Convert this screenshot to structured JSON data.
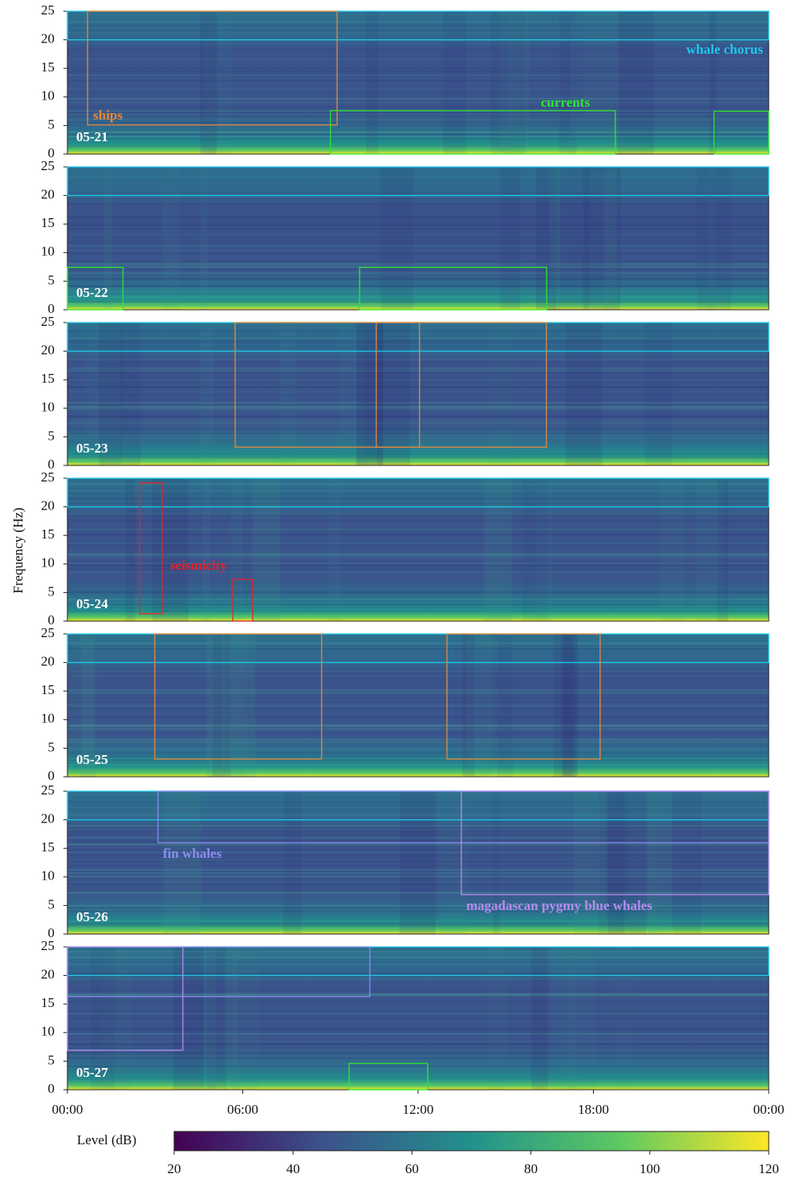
{
  "figure": {
    "ylabel": "Frequency (Hz)"
  },
  "chart_data": [
    {
      "type": "spectrogram",
      "date": "05-21",
      "xlim": [
        0,
        24
      ],
      "ylim": [
        0,
        25
      ],
      "yticks": [
        0,
        5,
        10,
        15,
        20,
        25
      ],
      "boxes": [
        {
          "x": [
            0,
            24
          ],
          "y": [
            20,
            25
          ],
          "color": "#1ec8e8"
        },
        {
          "x": [
            0.69,
            9.23
          ],
          "y": [
            5.1,
            25
          ],
          "color": "#e8873a"
        },
        {
          "x": [
            9.0,
            18.75
          ],
          "y": [
            0,
            7.6
          ],
          "color": "#2ee62e"
        },
        {
          "x": [
            22.13,
            24
          ],
          "y": [
            0,
            7.5
          ],
          "color": "#2ee62e"
        }
      ],
      "labels": [
        {
          "text": "whale chorus",
          "color": "#1ec8e8"
        },
        {
          "text": "ships",
          "color": "#e8873a"
        },
        {
          "text": "currents",
          "color": "#2ee62e"
        }
      ]
    },
    {
      "type": "spectrogram",
      "date": "05-22",
      "xlim": [
        0,
        24
      ],
      "ylim": [
        0,
        25
      ],
      "yticks": [
        0,
        5,
        10,
        15,
        20,
        25
      ],
      "boxes": [
        {
          "x": [
            0,
            24
          ],
          "y": [
            20,
            25
          ],
          "color": "#1ec8e8"
        },
        {
          "x": [
            0,
            1.9
          ],
          "y": [
            0,
            7.4
          ],
          "color": "#2ee62e"
        },
        {
          "x": [
            10.0,
            16.4
          ],
          "y": [
            0,
            7.4
          ],
          "color": "#2ee62e"
        }
      ],
      "labels": []
    },
    {
      "type": "spectrogram",
      "date": "05-23",
      "xlim": [
        0,
        24
      ],
      "ylim": [
        0,
        25
      ],
      "yticks": [
        0,
        5,
        10,
        15,
        20,
        25
      ],
      "boxes": [
        {
          "x": [
            0,
            24
          ],
          "y": [
            20,
            25
          ],
          "color": "#1ec8e8"
        },
        {
          "x": [
            5.74,
            12.05
          ],
          "y": [
            3.2,
            25
          ],
          "color": "#e8873a"
        },
        {
          "x": [
            10.57,
            16.39
          ],
          "y": [
            3.2,
            25
          ],
          "color": "#e8873a"
        }
      ],
      "labels": []
    },
    {
      "type": "spectrogram",
      "date": "05-24",
      "xlim": [
        0,
        24
      ],
      "ylim": [
        0,
        25
      ],
      "yticks": [
        0,
        5,
        10,
        15,
        20,
        25
      ],
      "boxes": [
        {
          "x": [
            0,
            24
          ],
          "y": [
            20,
            25
          ],
          "color": "#1ec8e8"
        },
        {
          "x": [
            2.47,
            3.24
          ],
          "y": [
            1.3,
            24.2
          ],
          "color": "#e8222a"
        },
        {
          "x": [
            5.66,
            6.34
          ],
          "y": [
            0,
            7.3
          ],
          "color": "#e8222a"
        }
      ],
      "labels": [
        {
          "text": "seismicity",
          "color": "#e8222a"
        }
      ]
    },
    {
      "type": "spectrogram",
      "date": "05-25",
      "xlim": [
        0,
        24
      ],
      "ylim": [
        0,
        25
      ],
      "yticks": [
        0,
        5,
        10,
        15,
        20,
        25
      ],
      "boxes": [
        {
          "x": [
            0,
            24
          ],
          "y": [
            20,
            25
          ],
          "color": "#1ec8e8"
        },
        {
          "x": [
            2.99,
            8.7
          ],
          "y": [
            3.1,
            25
          ],
          "color": "#e8873a"
        },
        {
          "x": [
            12.99,
            18.23
          ],
          "y": [
            3.1,
            25
          ],
          "color": "#e8873a"
        }
      ],
      "labels": []
    },
    {
      "type": "spectrogram",
      "date": "05-26",
      "xlim": [
        0,
        24
      ],
      "ylim": [
        0,
        25
      ],
      "yticks": [
        0,
        5,
        10,
        15,
        20,
        25
      ],
      "boxes": [
        {
          "x": [
            0,
            24
          ],
          "y": [
            20,
            25
          ],
          "color": "#1ec8e8"
        },
        {
          "x": [
            3.1,
            24
          ],
          "y": [
            16.0,
            25
          ],
          "color": "#8c8cf0"
        },
        {
          "x": [
            13.48,
            24
          ],
          "y": [
            6.9,
            25
          ],
          "color": "#b88af0"
        }
      ],
      "labels": [
        {
          "text": "fin whales",
          "color": "#8c8cf0"
        },
        {
          "text": "magadascan pygmy blue whales",
          "color": "#b88af0"
        }
      ]
    },
    {
      "type": "spectrogram",
      "date": "05-27",
      "xlim": [
        0,
        24
      ],
      "ylim": [
        0,
        25
      ],
      "yticks": [
        0,
        5,
        10,
        15,
        20,
        25
      ],
      "xticks": [
        {
          "value": 0,
          "label": "00:00"
        },
        {
          "value": 6,
          "label": "06:00"
        },
        {
          "value": 12,
          "label": "12:00"
        },
        {
          "value": 18,
          "label": "18:00"
        },
        {
          "value": 24,
          "label": "00:00"
        }
      ],
      "boxes": [
        {
          "x": [
            0,
            24
          ],
          "y": [
            20,
            25
          ],
          "color": "#1ec8e8"
        },
        {
          "x": [
            0,
            10.35
          ],
          "y": [
            16.3,
            25
          ],
          "color": "#8c8cf0"
        },
        {
          "x": [
            0,
            3.95
          ],
          "y": [
            6.9,
            25
          ],
          "color": "#b88af0"
        },
        {
          "x": [
            9.64,
            12.33
          ],
          "y": [
            0,
            4.6
          ],
          "color": "#2ee62e"
        }
      ],
      "labels": []
    },
    {
      "type": "colorbar",
      "title": "Level (dB)",
      "xlim": [
        20,
        120
      ],
      "xticks": [
        20,
        40,
        60,
        80,
        100,
        120
      ],
      "colors": [
        "#440154",
        "#3b528b",
        "#21918c",
        "#5ec962",
        "#fde725"
      ]
    }
  ]
}
